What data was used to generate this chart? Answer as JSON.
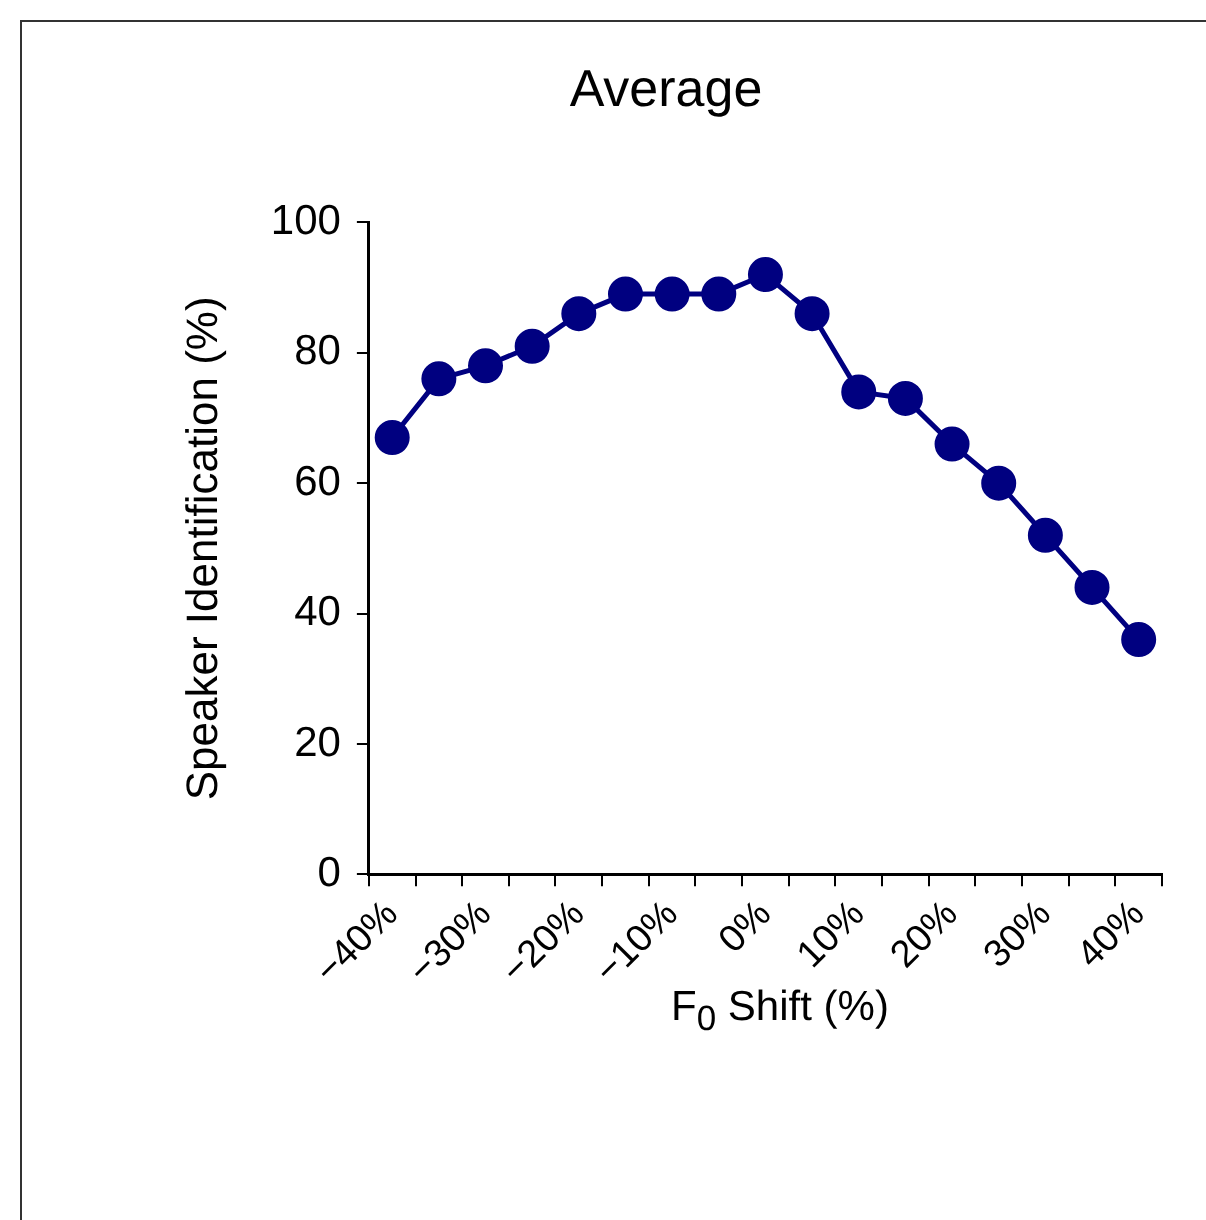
{
  "chart_data": {
    "type": "line",
    "title": "Average",
    "xlabel": "F$_{0}$ Shift (%)",
    "ylabel": "Speaker Identification (%)",
    "categories": [
      "−40%",
      null,
      "−30%",
      null,
      "−20%",
      null,
      "−10%",
      null,
      "0%",
      null,
      "10%",
      null,
      "20%",
      null,
      "30%",
      null,
      "40%"
    ],
    "series": [
      {
        "color": "#000080",
        "values": [
          67,
          76,
          78,
          81,
          86,
          89,
          89,
          89,
          92,
          86,
          74,
          73,
          66,
          60,
          52,
          44,
          36
        ]
      }
    ],
    "ylim": [
      0,
      100
    ],
    "yticks": [
      0,
      20,
      40,
      60,
      80,
      100
    ],
    "grid": false,
    "legend": false,
    "marker": "circle",
    "line_style": "solid"
  }
}
